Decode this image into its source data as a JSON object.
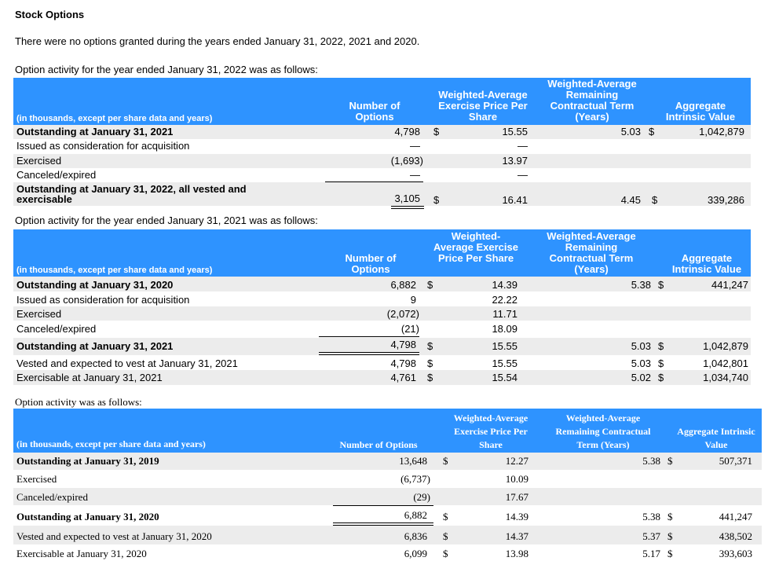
{
  "title": "Stock Options",
  "intro": "There were no options granted during the years ended January 31, 2022, 2021 and 2020.",
  "tables": [
    {
      "caption": "Option activity for the year ended January 31, 2022 was as follows:",
      "headers": {
        "label": "(in thousands, except per share data and years)",
        "options": "Number of Options",
        "price": "Weighted-Average Exercise Price Per Share",
        "term": "Weighted-Average Remaining Contractual Term (Years)",
        "value": "Aggregate Intrinsic Value"
      },
      "rows": [
        {
          "label": "Outstanding at January 31, 2021",
          "options": "4,798",
          "price": "15.55",
          "term": "5.03",
          "value": "1,042,879"
        },
        {
          "label": "Issued as consideration for acquisition",
          "options": "—",
          "price": "—",
          "term": "",
          "value": ""
        },
        {
          "label": "Exercised",
          "options": "(1,693)",
          "price": "13.97",
          "term": "",
          "value": ""
        },
        {
          "label": "Canceled/expired",
          "options": "—",
          "price": "—",
          "term": "",
          "value": ""
        },
        {
          "label": "Outstanding at January 31, 2022, all vested and exercisable",
          "options": "3,105",
          "price": "16.41",
          "term": "4.45",
          "value": "339,286"
        }
      ]
    },
    {
      "caption": "Option activity for the year ended January 31, 2021 was as follows:",
      "headers": {
        "label": "(in thousands, except per share data and years)",
        "options": "Number of Options",
        "price": "Weighted-Average Exercise Price Per Share",
        "term": "Weighted-Average Remaining Contractual Term (Years)",
        "value": "Aggregate Intrinsic Value"
      },
      "rows": [
        {
          "label": "Outstanding at January 31, 2020",
          "options": "6,882",
          "price": "14.39",
          "term": "5.38",
          "value": "441,247"
        },
        {
          "label": "Issued as consideration for acquisition",
          "options": "9",
          "price": "22.22",
          "term": "",
          "value": ""
        },
        {
          "label": "Exercised",
          "options": "(2,072)",
          "price": "11.71",
          "term": "",
          "value": ""
        },
        {
          "label": "Canceled/expired",
          "options": "(21)",
          "price": "18.09",
          "term": "",
          "value": ""
        },
        {
          "label": "Outstanding at January 31, 2021",
          "options": "4,798",
          "price": "15.55",
          "term": "5.03",
          "value": "1,042,879"
        },
        {
          "label": "Vested and expected to vest at January 31, 2021",
          "options": "4,798",
          "price": "15.55",
          "term": "5.03",
          "value": "1,042,801"
        },
        {
          "label": "Exercisable at January 31, 2021",
          "options": "4,761",
          "price": "15.54",
          "term": "5.02",
          "value": "1,034,740"
        }
      ]
    },
    {
      "caption": "Option activity was as follows:",
      "headers": {
        "label": "(in thousands, except per share data and years)",
        "options": "Number of Options",
        "price": "Weighted-Average Exercise Price Per Share",
        "term": "Weighted-Average Remaining Contractual Term (Years)",
        "value": "Aggregate Intrinsic Value"
      },
      "rows": [
        {
          "label": "Outstanding at January 31, 2019",
          "options": "13,648",
          "price": "12.27",
          "term": "5.38",
          "value": "507,371"
        },
        {
          "label": "Exercised",
          "options": "(6,737)",
          "price": "10.09",
          "term": "",
          "value": ""
        },
        {
          "label": "Canceled/expired",
          "options": "(29)",
          "price": "17.67",
          "term": "",
          "value": ""
        },
        {
          "label": "Outstanding at January 31, 2020",
          "options": "6,882",
          "price": "14.39",
          "term": "5.38",
          "value": "441,247"
        },
        {
          "label": "Vested and expected to vest at January 31, 2020",
          "options": "6,836",
          "price": "14.37",
          "term": "5.37",
          "value": "438,502"
        },
        {
          "label": "Exercisable at January 31, 2020",
          "options": "6,099",
          "price": "13.98",
          "term": "5.17",
          "value": "393,603"
        }
      ]
    }
  ],
  "currency_symbol": "$",
  "colors": {
    "header_band": "#2e93ff",
    "row_stripe": "#ececec"
  }
}
